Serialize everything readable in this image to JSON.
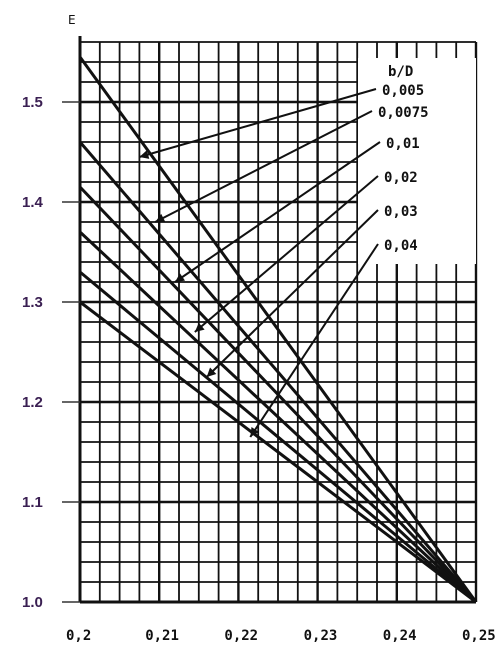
{
  "chart_data": {
    "type": "line",
    "ylabel": "E",
    "legend_title": "b/D",
    "legend_position": "top-right",
    "grid": true,
    "xlim": [
      0.2,
      0.25
    ],
    "ylim": [
      1.0,
      1.55
    ],
    "x_ticks": [
      0.2,
      0.21,
      0.22,
      0.23,
      0.24,
      0.25
    ],
    "x_tick_labels": [
      "0,2",
      "0,21",
      "0,22",
      "0,23",
      "0,24",
      "0,25"
    ],
    "y_ticks": [
      1.0,
      1.1,
      1.2,
      1.3,
      1.4,
      1.5
    ],
    "y_tick_labels": [
      "1.0",
      "1.1",
      "1.2",
      "1.3",
      "1.4",
      "1.5"
    ],
    "series": [
      {
        "name": "0,005",
        "x": [
          0.2,
          0.25
        ],
        "y": [
          1.545,
          1.0
        ],
        "label_anchor": [
          0.2075,
          1.445
        ]
      },
      {
        "name": "0,0075",
        "x": [
          0.2,
          0.25
        ],
        "y": [
          1.46,
          1.0
        ],
        "label_anchor": [
          0.2095,
          1.38
        ]
      },
      {
        "name": "0,01",
        "x": [
          0.2,
          0.25
        ],
        "y": [
          1.415,
          1.0
        ],
        "label_anchor": [
          0.212,
          1.32
        ]
      },
      {
        "name": "0,02",
        "x": [
          0.2,
          0.25
        ],
        "y": [
          1.37,
          1.0
        ],
        "label_anchor": [
          0.2145,
          1.27
        ]
      },
      {
        "name": "0,03",
        "x": [
          0.2,
          0.25
        ],
        "y": [
          1.33,
          1.0
        ],
        "label_anchor": [
          0.216,
          1.225
        ]
      },
      {
        "name": "0,04",
        "x": [
          0.2,
          0.25
        ],
        "y": [
          1.3,
          1.0
        ],
        "label_anchor": [
          0.2215,
          1.165
        ]
      }
    ]
  },
  "colors": {
    "ink": "#111111",
    "ytick": "#3a1f52",
    "background": "#ffffff"
  }
}
